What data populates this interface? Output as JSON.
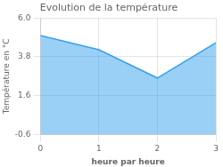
{
  "chart_data": {
    "type": "area",
    "title": "Evolution de la température",
    "xlabel": "heure par heure",
    "ylabel": "Température en °C",
    "x": [
      0,
      1,
      2,
      3
    ],
    "values": [
      5.0,
      4.2,
      2.6,
      4.6
    ],
    "xlim": [
      0,
      3
    ],
    "ylim": [
      -0.6,
      6.0
    ],
    "xticks": [
      0,
      1,
      2,
      3
    ],
    "yticks": [
      -0.6,
      1.6,
      3.8,
      {
        "value": 6.0,
        "label": "6.0"
      }
    ],
    "grid": true
  }
}
